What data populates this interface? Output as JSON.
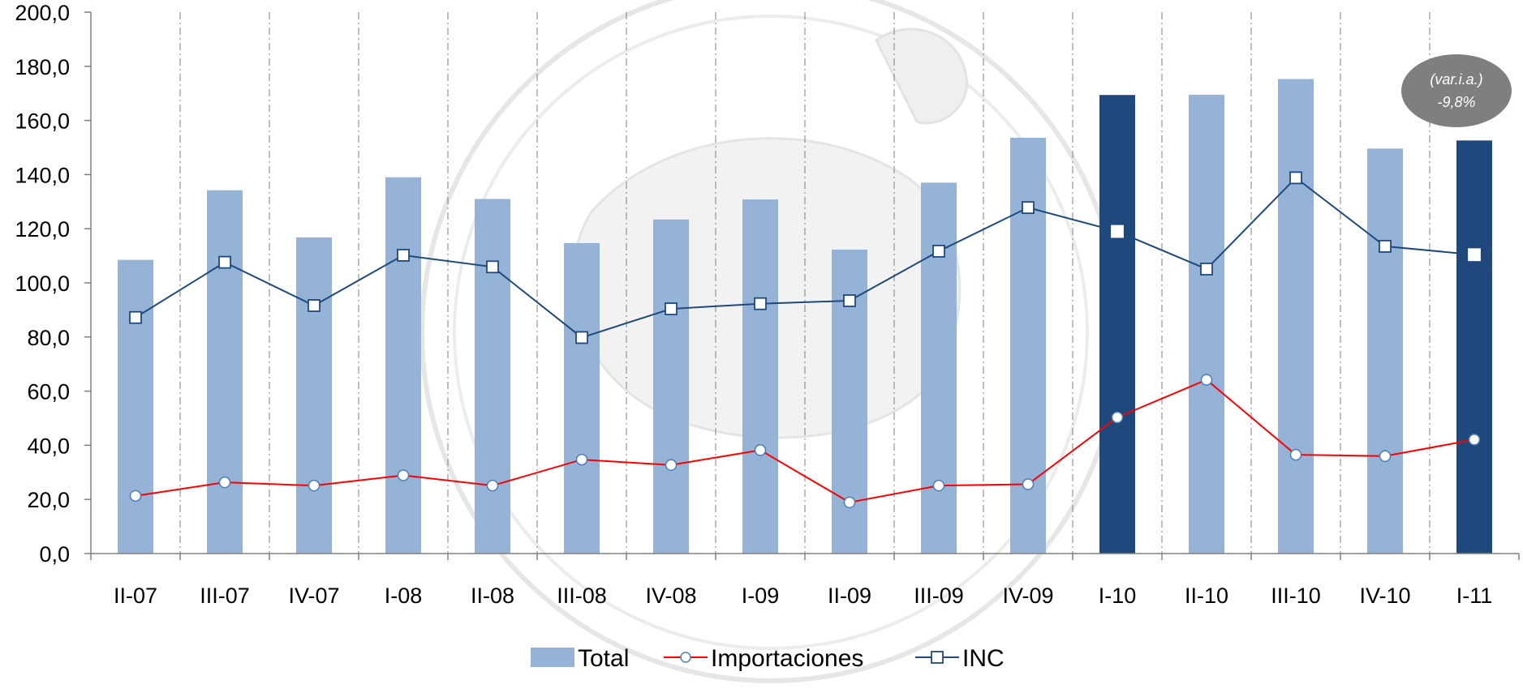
{
  "chart_data": {
    "type": "bar",
    "categories": [
      "II-07",
      "III-07",
      "IV-07",
      "I-08",
      "II-08",
      "III-08",
      "IV-08",
      "I-09",
      "II-09",
      "III-09",
      "IV-09",
      "I-10",
      "II-10",
      "III-10",
      "IV-10",
      "I-11"
    ],
    "ylim": [
      0,
      200
    ],
    "yticks": [
      "0,0",
      "20,0",
      "40,0",
      "60,0",
      "80,0",
      "100,0",
      "120,0",
      "140,0",
      "160,0",
      "180,0",
      "200,0"
    ],
    "grid": "vertical dash-dot lines between categories",
    "legend_placement": "bottom-center",
    "series": [
      {
        "name": "Total",
        "kind": "bar",
        "color": "#95b3d7",
        "highlight_color": "#1f497d",
        "highlighted": [
          "I-10",
          "I-11"
        ],
        "values": [
          108.5,
          134.2,
          116.8,
          139.0,
          131.0,
          114.7,
          123.4,
          130.8,
          112.3,
          137.0,
          153.6,
          169.4,
          169.5,
          175.3,
          149.6,
          152.6
        ]
      },
      {
        "name": "Importaciones",
        "kind": "line",
        "marker": "circle",
        "color": "#ff0000",
        "values": [
          21.3,
          26.3,
          25.1,
          28.9,
          25.1,
          34.7,
          32.7,
          38.2,
          18.9,
          25.1,
          25.6,
          50.3,
          64.2,
          36.5,
          36.0,
          42.1
        ]
      },
      {
        "name": "INC",
        "kind": "line",
        "marker": "square",
        "color": "#1f497d",
        "values": [
          87.2,
          107.6,
          91.6,
          110.2,
          105.9,
          79.8,
          90.4,
          92.3,
          93.4,
          111.7,
          127.8,
          119.0,
          105.1,
          138.8,
          113.5,
          110.4
        ]
      }
    ],
    "annotation": {
      "line1": "(var.i.a.)",
      "line2": "-9,8%",
      "color": "#7f7f7f"
    }
  }
}
